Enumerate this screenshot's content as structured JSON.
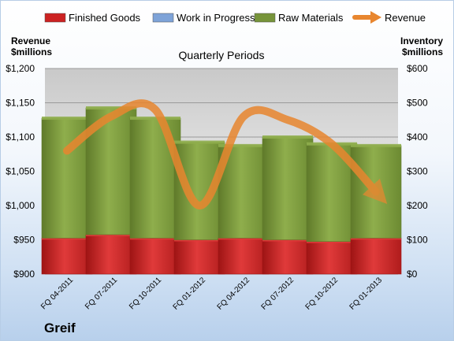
{
  "chart_data": {
    "type": "bar",
    "stacked": true,
    "title": "Quarterly Periods",
    "categories": [
      "FQ 04-2011",
      "FQ 07-2011",
      "FQ 10-2011",
      "FQ 01-2012",
      "FQ 04-2012",
      "FQ 07-2012",
      "FQ 10-2012",
      "FQ 01-2013"
    ],
    "series": [
      {
        "name": "Finished Goods",
        "axis": "right",
        "color": "#cc2222",
        "values": [
          105,
          115,
          105,
          100,
          105,
          100,
          95,
          105
        ]
      },
      {
        "name": "Work in Progress",
        "axis": "right",
        "color": "#7ea3d8",
        "values": [
          0,
          0,
          0,
          0,
          0,
          0,
          0,
          0
        ]
      },
      {
        "name": "Raw Materials",
        "axis": "right",
        "color": "#77943a",
        "values": [
          350,
          370,
          350,
          285,
          270,
          300,
          285,
          270
        ]
      },
      {
        "name": "Revenue",
        "axis": "left",
        "type": "line",
        "color": "#e8862f",
        "values": [
          1080,
          1130,
          1140,
          1000,
          1130,
          1125,
          1090,
          1020
        ]
      }
    ],
    "left_axis": {
      "label_line1": "Revenue",
      "label_line2": "$millions",
      "min": 900,
      "max": 1200,
      "ticks": [
        "$900",
        "$950",
        "$1,000",
        "$1,050",
        "$1,100",
        "$1,150",
        "$1,200"
      ]
    },
    "right_axis": {
      "label_line1": "Inventory",
      "label_line2": "$millions",
      "min": 0,
      "max": 600,
      "ticks": [
        "$0",
        "$100",
        "$200",
        "$300",
        "$400",
        "$500",
        "$600"
      ]
    },
    "legend_position": "top",
    "grid": true
  },
  "brand": "Greif"
}
